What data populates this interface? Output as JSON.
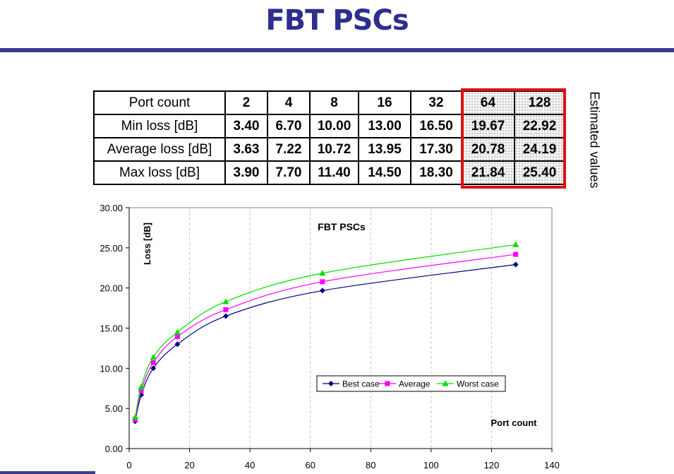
{
  "title": "FBT PSCs",
  "estimated_label": "Estimated values",
  "table": {
    "header_label": "Port count",
    "ports": [
      "2",
      "4",
      "8",
      "16",
      "32",
      "64",
      "128"
    ],
    "rows": [
      {
        "label": "Min loss [dB]",
        "values": [
          "3.40",
          "6.70",
          "10.00",
          "13.00",
          "16.50",
          "19.67",
          "22.92"
        ]
      },
      {
        "label": "Average loss [dB]",
        "values": [
          "3.63",
          "7.22",
          "10.72",
          "13.95",
          "17.30",
          "20.78",
          "24.19"
        ]
      },
      {
        "label": "Max loss [dB]",
        "values": [
          "3.90",
          "7.70",
          "11.40",
          "14.50",
          "18.30",
          "21.84",
          "25.40"
        ]
      }
    ]
  },
  "chart_data": {
    "type": "line",
    "title": "FBT PSCs",
    "xlabel": "Port count",
    "ylabel": "Loss [dB]",
    "xlim": [
      0,
      140
    ],
    "ylim": [
      0,
      30
    ],
    "x_ticks": [
      "0",
      "20",
      "40",
      "60",
      "80",
      "100",
      "120",
      "140"
    ],
    "y_ticks": [
      "0.00",
      "5.00",
      "10.00",
      "15.00",
      "20.00",
      "25.00",
      "30.00"
    ],
    "x": [
      2,
      4,
      8,
      16,
      32,
      64,
      128
    ],
    "grid": true,
    "legend_position": "lower-right",
    "series": [
      {
        "name": "Best case",
        "values": [
          3.4,
          6.7,
          10.0,
          13.0,
          16.5,
          19.67,
          22.92
        ],
        "color": "#000080",
        "marker": "diamond"
      },
      {
        "name": "Average",
        "values": [
          3.63,
          7.22,
          10.72,
          13.95,
          17.3,
          20.78,
          24.19
        ],
        "color": "#ff00ff",
        "marker": "square"
      },
      {
        "name": "Worst case",
        "values": [
          3.9,
          7.7,
          11.4,
          14.5,
          18.3,
          21.84,
          25.4
        ],
        "color": "#00dd00",
        "marker": "triangle"
      }
    ]
  }
}
